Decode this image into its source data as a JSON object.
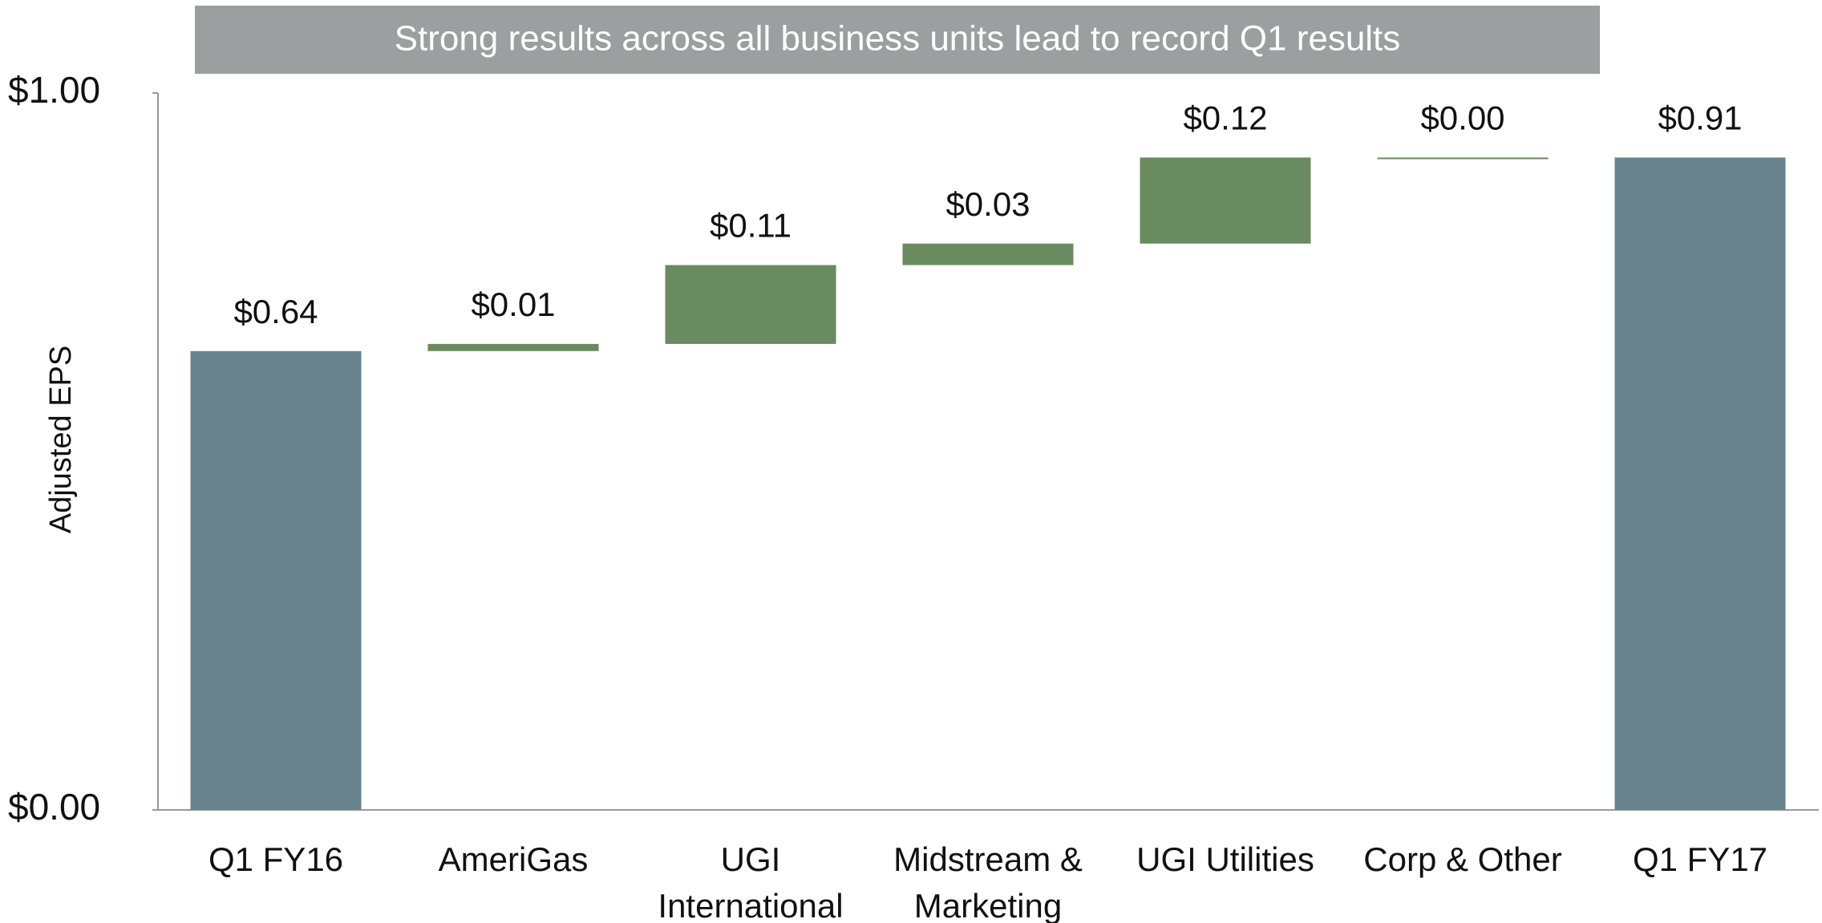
{
  "chart_data": {
    "type": "waterfall",
    "title": "Strong results across all business units lead to record Q1 results",
    "y_label": "Adjusted EPS",
    "categories": [
      "Q1 FY16",
      "AmeriGas",
      "UGI\nInternational",
      "Midstream &\nMarketing",
      "UGI Utilities",
      "Corp & Other",
      "Q1 FY17"
    ],
    "values": [
      0.64,
      0.01,
      0.11,
      0.03,
      0.12,
      0.0,
      0.91
    ],
    "value_labels": [
      "$0.64",
      "$0.01",
      "$0.11",
      "$0.03",
      "$0.12",
      "$0.00",
      "$0.91"
    ],
    "total_color": "#68838e",
    "increase_color": "#6a8a60",
    "ylim": [
      0,
      1
    ],
    "yticks": [
      {
        "value": 0,
        "label": "$0.00"
      },
      {
        "value": 1,
        "label": "$1.00"
      }
    ],
    "grid": false
  }
}
